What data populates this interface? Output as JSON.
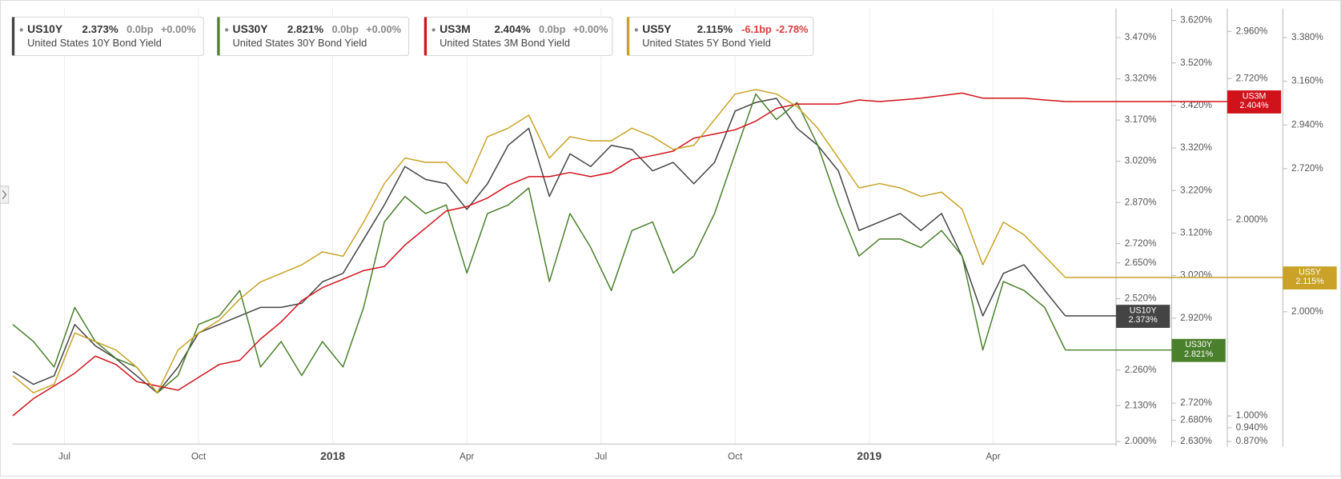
{
  "chart_data": {
    "type": "line",
    "grid": true,
    "xlim": [
      0,
      53.25
    ],
    "xticks": [
      {
        "value": 2.5,
        "label": "Jul"
      },
      {
        "value": 9,
        "label": "Oct"
      },
      {
        "value": 15.5,
        "label": "2018"
      },
      {
        "value": 22,
        "label": "Apr"
      },
      {
        "value": 28.5,
        "label": "Jul"
      },
      {
        "value": 35,
        "label": "Oct"
      },
      {
        "value": 41.5,
        "label": "2019"
      },
      {
        "value": 47.5,
        "label": "Apr"
      }
    ],
    "ylim": [
      2.0,
      3.576
    ],
    "yticks": [
      {
        "value": 2.0,
        "label": "2.000%"
      },
      {
        "value": 2.13,
        "label": "2.130%"
      },
      {
        "value": 2.26,
        "label": "2.260%"
      },
      {
        "value": 2.52,
        "label": "2.520%"
      },
      {
        "value": 2.65,
        "label": "2.650%"
      },
      {
        "value": 2.72,
        "label": "2.720%"
      },
      {
        "value": 2.87,
        "label": "2.870%"
      },
      {
        "value": 3.02,
        "label": "3.020%"
      },
      {
        "value": 3.17,
        "label": "3.170%"
      },
      {
        "value": 3.32,
        "label": "3.320%"
      },
      {
        "value": 3.47,
        "label": "3.470%"
      }
    ],
    "y2lim": [
      2.63,
      3.648
    ],
    "y2ticks": [
      {
        "value": 2.63,
        "label": "2.630%"
      },
      {
        "value": 2.68,
        "label": "2.680%"
      },
      {
        "value": 2.72,
        "label": "2.720%"
      },
      {
        "value": 2.92,
        "label": "2.920%"
      },
      {
        "value": 3.02,
        "label": "3.020%"
      },
      {
        "value": 3.12,
        "label": "3.120%"
      },
      {
        "value": 3.22,
        "label": "3.220%"
      },
      {
        "value": 3.32,
        "label": "3.320%"
      },
      {
        "value": 3.42,
        "label": "3.420%"
      },
      {
        "value": 3.52,
        "label": "3.520%"
      },
      {
        "value": 3.62,
        "label": "3.620%"
      }
    ],
    "y3lim": [
      0.87,
      3.077
    ],
    "y3ticks": [
      {
        "value": 0.87,
        "label": "0.870%"
      },
      {
        "value": 0.94,
        "label": "0.940%"
      },
      {
        "value": 1.0,
        "label": "1.000%"
      },
      {
        "value": 2.0,
        "label": "2.000%"
      },
      {
        "value": 2.72,
        "label": "2.720%"
      },
      {
        "value": 2.96,
        "label": "2.960%"
      }
    ],
    "y4lim": [
      1.347,
      3.526
    ],
    "y4ticks": [
      {
        "value": 2.0,
        "label": "2.000%"
      },
      {
        "value": 2.72,
        "label": "2.720%"
      },
      {
        "value": 2.94,
        "label": "2.940%"
      },
      {
        "value": 3.16,
        "label": "3.160%"
      },
      {
        "value": 3.38,
        "label": "3.380%"
      }
    ],
    "series": [
      {
        "name": "US10Y",
        "description": "United States 10Y Bond Yield",
        "last": "2.373%",
        "change_bp": "0.0bp",
        "change_pct": "+0.00%",
        "color": "#444444",
        "axis": "y",
        "values": [
          2.255,
          2.208,
          2.239,
          2.426,
          2.348,
          2.301,
          2.239,
          2.177,
          2.27,
          2.395,
          2.426,
          2.457,
          2.488,
          2.488,
          2.503,
          2.581,
          2.612,
          2.736,
          2.861,
          3.001,
          2.954,
          2.938,
          2.845,
          2.938,
          3.078,
          3.14,
          2.892,
          3.047,
          3.001,
          3.078,
          3.063,
          2.985,
          3.016,
          2.938,
          3.016,
          3.203,
          3.234,
          3.249,
          3.14,
          3.078,
          2.985,
          2.768,
          2.799,
          2.83,
          2.768,
          2.83,
          2.674,
          2.457,
          2.612,
          2.643,
          2.55,
          2.457
        ]
      },
      {
        "name": "US30Y",
        "description": "United States 30Y Bond Yield",
        "last": "2.821%",
        "change_bp": "0.0bp",
        "change_pct": "+0.00%",
        "color": "#4a7f2b",
        "axis": "y2",
        "values": [
          2.905,
          2.865,
          2.805,
          2.945,
          2.865,
          2.825,
          2.805,
          2.744,
          2.785,
          2.905,
          2.925,
          2.985,
          2.805,
          2.865,
          2.785,
          2.865,
          2.805,
          2.945,
          3.146,
          3.206,
          3.166,
          3.186,
          3.026,
          3.166,
          3.186,
          3.226,
          3.006,
          3.166,
          3.086,
          2.985,
          3.126,
          3.146,
          3.026,
          3.066,
          3.166,
          3.307,
          3.447,
          3.387,
          3.427,
          3.327,
          3.186,
          3.066,
          3.106,
          3.106,
          3.086,
          3.126,
          3.066,
          2.845,
          3.006,
          2.985,
          2.945,
          2.845
        ]
      },
      {
        "name": "US3M",
        "description": "United States 3M Bond Yield",
        "last": "2.404%",
        "change_bp": "0.0bp",
        "change_pct": "+0.00%",
        "color": "#d0121b",
        "axis": "y3",
        "values": [
          1.001,
          1.088,
          1.153,
          1.218,
          1.305,
          1.262,
          1.175,
          1.153,
          1.131,
          1.197,
          1.262,
          1.284,
          1.392,
          1.479,
          1.588,
          1.654,
          1.697,
          1.741,
          1.762,
          1.871,
          1.958,
          2.045,
          2.067,
          2.111,
          2.176,
          2.22,
          2.22,
          2.241,
          2.22,
          2.241,
          2.307,
          2.328,
          2.35,
          2.416,
          2.437,
          2.459,
          2.503,
          2.568,
          2.59,
          2.59,
          2.59,
          2.611,
          2.603,
          2.611,
          2.62,
          2.633,
          2.646,
          2.62,
          2.62,
          2.62,
          2.611,
          2.603
        ]
      },
      {
        "name": "US5Y",
        "description": "United States 5Y Bond Yield",
        "last": "2.115%",
        "change_bp": "-6.1bp",
        "change_pct": "-2.78%",
        "color": "#c9a227",
        "axis": "y4",
        "values": [
          1.678,
          1.592,
          1.635,
          1.893,
          1.85,
          1.807,
          1.721,
          1.592,
          1.807,
          1.893,
          1.957,
          2.064,
          2.15,
          2.193,
          2.236,
          2.301,
          2.279,
          2.451,
          2.645,
          2.774,
          2.752,
          2.752,
          2.645,
          2.881,
          2.924,
          2.989,
          2.774,
          2.881,
          2.86,
          2.86,
          2.924,
          2.881,
          2.817,
          2.838,
          2.967,
          3.096,
          3.118,
          3.096,
          3.032,
          2.924,
          2.774,
          2.623,
          2.645,
          2.623,
          2.58,
          2.602,
          2.516,
          2.236,
          2.451,
          2.387,
          2.279,
          2.172
        ]
      }
    ]
  }
}
